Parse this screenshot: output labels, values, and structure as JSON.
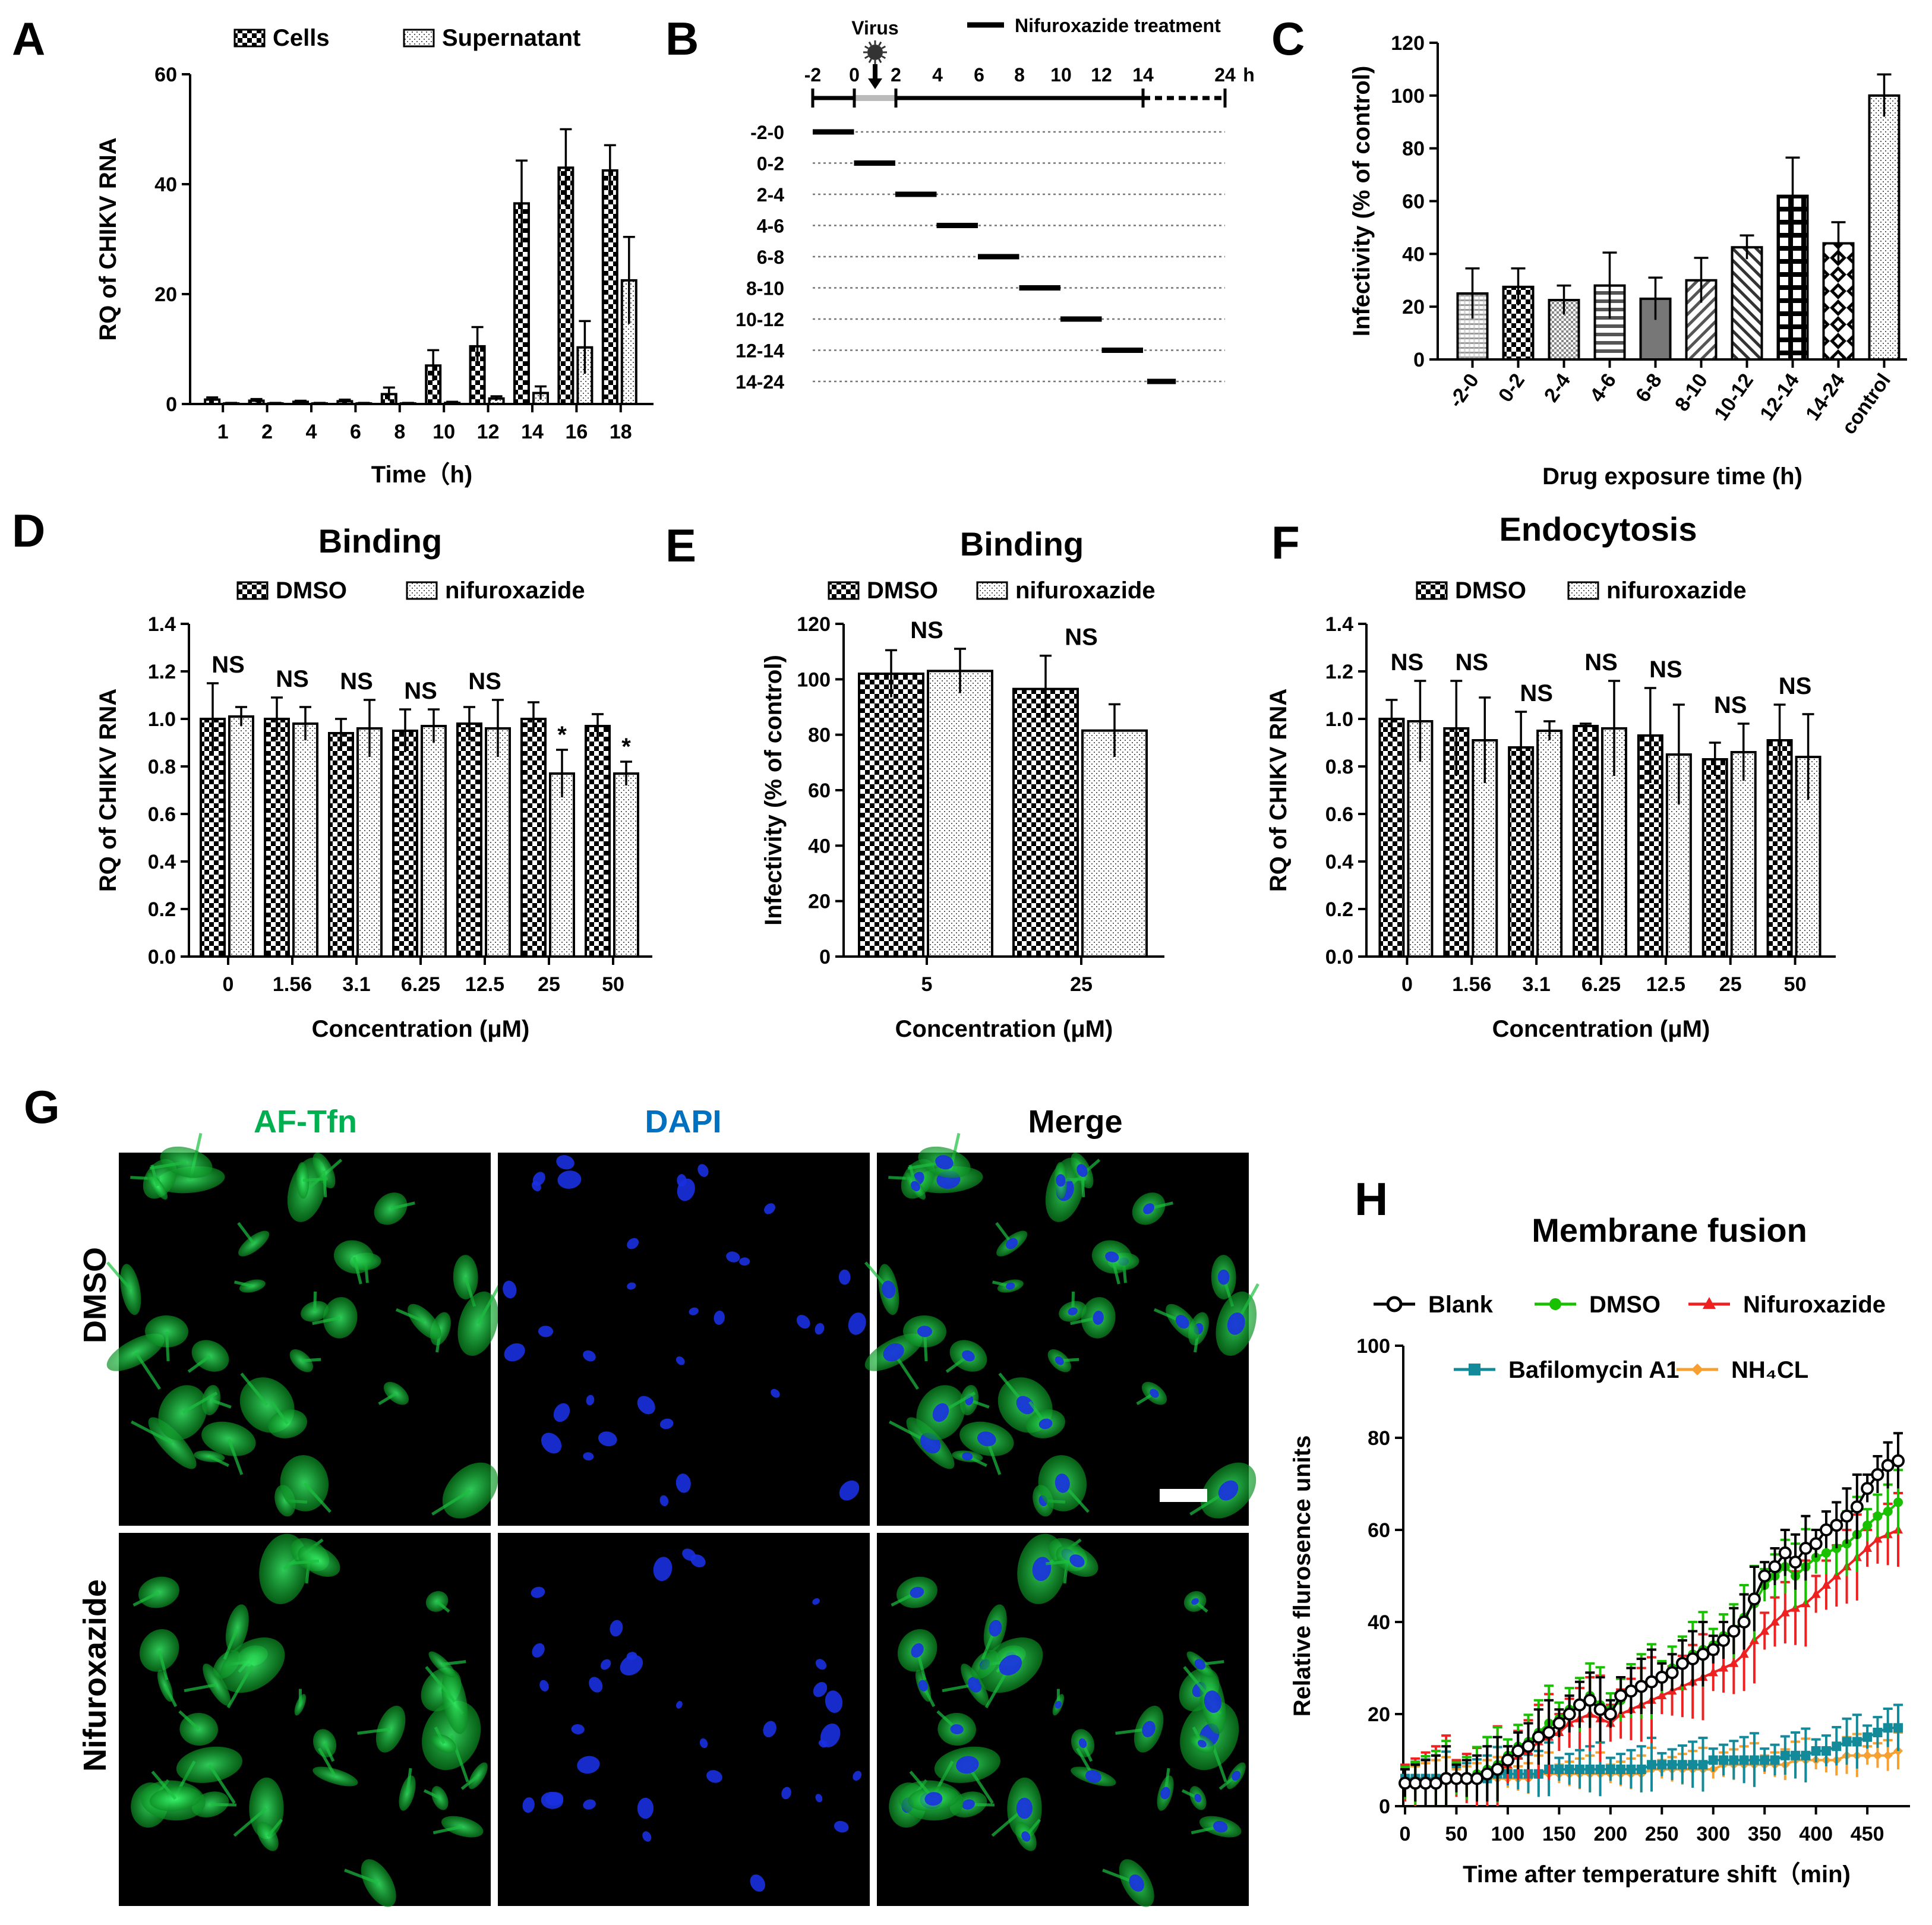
{
  "colors": {
    "green_label": "#00b050",
    "blue_label": "#0070c0",
    "black_label": "#000000",
    "blank": "#000000",
    "dmso_line": "#18c000",
    "nifuroxazide_line": "#ee2020",
    "bafilomycin": "#128a9a",
    "nh4cl": "#f5a030"
  },
  "panel_letters": {
    "A": "A",
    "B": "B",
    "C": "C",
    "D": "D",
    "E": "E",
    "F": "F",
    "G": "G",
    "H": "H"
  },
  "microscopy": {
    "columns": [
      "AF-Tfn",
      "DAPI",
      "Merge"
    ],
    "rows": [
      "DMSO",
      "Nifuroxazide"
    ]
  },
  "chart_data": [
    {
      "id": "A",
      "type": "bar",
      "title": "",
      "xlabel": "Time（h)",
      "ylabel": "RQ of CHIKV RNA",
      "ylim": [
        0,
        60
      ],
      "yticks": [
        0,
        20,
        40,
        60
      ],
      "categories": [
        "1",
        "2",
        "4",
        "6",
        "8",
        "10",
        "12",
        "14",
        "16",
        "18"
      ],
      "series": [
        {
          "name": "Cells",
          "pattern": "checker",
          "values": [
            0.8,
            0.6,
            0.4,
            0.5,
            1.8,
            7,
            10.5,
            36.5,
            43,
            42.5
          ],
          "errors": [
            0.4,
            0.3,
            0.2,
            0.3,
            1.2,
            2.8,
            3.5,
            7.8,
            7,
            4.6
          ]
        },
        {
          "name": "Supernatant",
          "pattern": "dots",
          "values": [
            0.1,
            0.1,
            0.1,
            0.1,
            0.1,
            0.2,
            1,
            2,
            10.3,
            22.5
          ],
          "errors": [
            0.1,
            0.1,
            0.1,
            0.1,
            0.1,
            0.2,
            0.4,
            1.2,
            4.8,
            7.9
          ]
        }
      ],
      "legend": "top"
    },
    {
      "id": "B",
      "type": "timeline",
      "title": "",
      "virus_label": "Virus",
      "legend_label": "Nifuroxazide treatment",
      "unit": "h",
      "axis_ticks": [
        "-2",
        "0",
        "2",
        "4",
        "6",
        "8",
        "10",
        "12",
        "14",
        "24"
      ],
      "rows": [
        {
          "label": "-2-0",
          "start": -2,
          "end": 0
        },
        {
          "label": "0-2",
          "start": 0,
          "end": 2
        },
        {
          "label": "2-4",
          "start": 2,
          "end": 4
        },
        {
          "label": "4-6",
          "start": 4,
          "end": 6
        },
        {
          "label": "6-8",
          "start": 6,
          "end": 8
        },
        {
          "label": "8-10",
          "start": 8,
          "end": 10
        },
        {
          "label": "10-12",
          "start": 10,
          "end": 12
        },
        {
          "label": "12-14",
          "start": 12,
          "end": 14
        },
        {
          "label": "14-24",
          "start": 14.5,
          "end": 18
        }
      ]
    },
    {
      "id": "C",
      "type": "bar",
      "title": "",
      "xlabel": "Drug exposure time (h)",
      "ylabel": "Infectivity (% of  control)",
      "ylim": [
        0,
        120
      ],
      "yticks": [
        0,
        20,
        40,
        60,
        80,
        100,
        120
      ],
      "categories": [
        "-2-0",
        "0-2",
        "2-4",
        "4-6",
        "6-8",
        "8-10",
        "10-12",
        "12-14",
        "14-24",
        "control"
      ],
      "values": [
        25,
        27.5,
        22.5,
        28,
        23,
        30,
        42.5,
        62,
        44,
        100
      ],
      "errors": [
        9.5,
        7,
        5.5,
        12.5,
        8,
        8.5,
        4.5,
        14.5,
        8,
        8
      ],
      "patterns": [
        "hlinesfine",
        "checker",
        "dotsdense",
        "hstripes",
        "gray",
        "diagr",
        "diagl",
        "grid",
        "diamond",
        "dots"
      ]
    },
    {
      "id": "D",
      "type": "bar",
      "title": "Binding",
      "xlabel": "Concentration (μM)",
      "ylabel": "RQ of CHIKV RNA",
      "ylim": [
        0,
        1.4
      ],
      "yticks": [
        "0.0",
        "0.2",
        "0.4",
        "0.6",
        "0.8",
        "1.0",
        "1.2",
        "1.4"
      ],
      "categories": [
        "0",
        "1.56",
        "3.1",
        "6.25",
        "12.5",
        "25",
        "50"
      ],
      "series": [
        {
          "name": "DMSO",
          "pattern": "checker",
          "values": [
            1.0,
            1.0,
            0.94,
            0.95,
            0.98,
            1.0,
            0.97
          ],
          "errors": [
            0.15,
            0.09,
            0.06,
            0.09,
            0.07,
            0.07,
            0.05
          ]
        },
        {
          "name": "nifuroxazide",
          "pattern": "dots",
          "values": [
            1.01,
            0.98,
            0.96,
            0.97,
            0.96,
            0.77,
            0.77
          ],
          "errors": [
            0.04,
            0.07,
            0.12,
            0.07,
            0.12,
            0.1,
            0.05
          ]
        }
      ],
      "annotations": [
        "NS",
        "NS",
        "NS",
        "NS",
        "NS",
        "*",
        "*"
      ],
      "legend": "top"
    },
    {
      "id": "E",
      "type": "bar",
      "title": "Binding",
      "xlabel": "Concentration (μM)",
      "ylabel": "Infectivity (% of control)",
      "ylim": [
        0,
        120
      ],
      "yticks": [
        0,
        20,
        40,
        60,
        80,
        100,
        120
      ],
      "categories": [
        "5",
        "25"
      ],
      "series": [
        {
          "name": "DMSO",
          "pattern": "checker",
          "values": [
            102,
            96.5
          ],
          "errors": [
            8.5,
            12
          ]
        },
        {
          "name": "nifuroxazide",
          "pattern": "dots",
          "values": [
            103,
            81.5
          ],
          "errors": [
            8,
            9.5
          ]
        }
      ],
      "annotations": [
        "NS",
        "NS"
      ],
      "legend": "top"
    },
    {
      "id": "F",
      "type": "bar",
      "title": "Endocytosis",
      "xlabel": "Concentration (μM)",
      "ylabel": "RQ of CHIKV RNA",
      "ylim": [
        0,
        1.4
      ],
      "yticks": [
        "0.0",
        "0.2",
        "0.4",
        "0.6",
        "0.8",
        "1.0",
        "1.2",
        "1.4"
      ],
      "categories": [
        "0",
        "1.56",
        "3.1",
        "6.25",
        "12.5",
        "25",
        "50"
      ],
      "series": [
        {
          "name": "DMSO",
          "pattern": "checker",
          "values": [
            1.0,
            0.96,
            0.88,
            0.97,
            0.93,
            0.83,
            0.91
          ],
          "errors": [
            0.08,
            0.2,
            0.15,
            0.01,
            0.2,
            0.07,
            0.15
          ]
        },
        {
          "name": "nifuroxazide",
          "pattern": "dots",
          "values": [
            0.99,
            0.91,
            0.95,
            0.96,
            0.85,
            0.86,
            0.84
          ],
          "errors": [
            0.17,
            0.18,
            0.04,
            0.2,
            0.21,
            0.12,
            0.18
          ]
        }
      ],
      "annotations": [
        "NS",
        "NS",
        "NS",
        "NS",
        "NS",
        "NS",
        "NS"
      ],
      "legend": "top"
    },
    {
      "id": "H",
      "type": "line",
      "title": "Membrane fusion",
      "xlabel": "Time after temperature shift（min)",
      "ylabel": "Relative flurosence units",
      "xlim": [
        0,
        480
      ],
      "ylim": [
        0,
        100
      ],
      "xticks": [
        0,
        50,
        100,
        150,
        200,
        250,
        300,
        350,
        400,
        450
      ],
      "yticks": [
        0,
        20,
        40,
        60,
        80,
        100
      ],
      "x": [
        0,
        10,
        20,
        30,
        40,
        50,
        60,
        70,
        80,
        90,
        100,
        110,
        120,
        130,
        140,
        150,
        160,
        170,
        180,
        190,
        200,
        210,
        220,
        230,
        240,
        250,
        260,
        270,
        280,
        290,
        300,
        310,
        320,
        330,
        340,
        350,
        360,
        370,
        380,
        390,
        400,
        410,
        420,
        430,
        440,
        450,
        460,
        470,
        480
      ],
      "series": [
        {
          "name": "Blank",
          "marker": "circle",
          "values": [
            5,
            5,
            5,
            5,
            6,
            6,
            6,
            6,
            7,
            8,
            10,
            12,
            13,
            15,
            16,
            18,
            20,
            22,
            23,
            21,
            20,
            24,
            25,
            26,
            27,
            28,
            29,
            31,
            32,
            33,
            34,
            36,
            38,
            40,
            45,
            50,
            52,
            55,
            53,
            56,
            57,
            60,
            61,
            63,
            65,
            69,
            72,
            74,
            75
          ],
          "error": 6
        },
        {
          "name": "DMSO",
          "marker": "dot",
          "values": [
            5,
            5,
            5,
            5,
            6,
            6,
            6,
            7,
            8,
            9,
            11,
            13,
            14,
            16,
            18,
            19,
            21,
            22,
            24,
            22,
            21,
            23,
            25,
            26,
            27,
            28,
            30,
            31,
            33,
            34,
            35,
            37,
            38,
            41,
            44,
            48,
            50,
            52,
            50,
            52,
            54,
            55,
            56,
            57,
            59,
            61,
            63,
            64,
            66
          ],
          "error": 7
        },
        {
          "name": "Nifuroxazide",
          "marker": "triangle",
          "values": [
            5,
            5,
            5,
            5,
            6,
            6,
            6,
            6,
            7,
            8,
            9,
            11,
            12,
            14,
            15,
            16,
            18,
            19,
            20,
            19,
            18,
            20,
            21,
            22,
            23,
            24,
            25,
            26,
            27,
            28,
            29,
            30,
            31,
            33,
            36,
            38,
            40,
            42,
            43,
            44,
            46,
            48,
            50,
            52,
            54,
            56,
            58,
            59,
            60
          ],
          "error": 8
        },
        {
          "name": "Bafilomycin A1",
          "marker": "square",
          "values": [
            6,
            6,
            6,
            6,
            6,
            6,
            6,
            6,
            6,
            7,
            7,
            7,
            7,
            7,
            8,
            8,
            8,
            8,
            8,
            8,
            8,
            8,
            8,
            8,
            9,
            9,
            9,
            9,
            9,
            9,
            10,
            10,
            10,
            10,
            10,
            10,
            10,
            11,
            11,
            11,
            12,
            12,
            13,
            14,
            14,
            15,
            16,
            17,
            17
          ],
          "error": 5
        },
        {
          "name": "NH₄CL",
          "marker": "diamond",
          "values": [
            6,
            6,
            6,
            6,
            6,
            6,
            6,
            6,
            6,
            6,
            6,
            6,
            6,
            7,
            7,
            7,
            7,
            7,
            7,
            7,
            7,
            7,
            7,
            7,
            8,
            8,
            8,
            8,
            8,
            8,
            8,
            9,
            9,
            9,
            9,
            9,
            9,
            9,
            10,
            10,
            10,
            10,
            10,
            11,
            11,
            11,
            11,
            11,
            12
          ],
          "error": 4
        }
      ],
      "legend": "top"
    }
  ]
}
